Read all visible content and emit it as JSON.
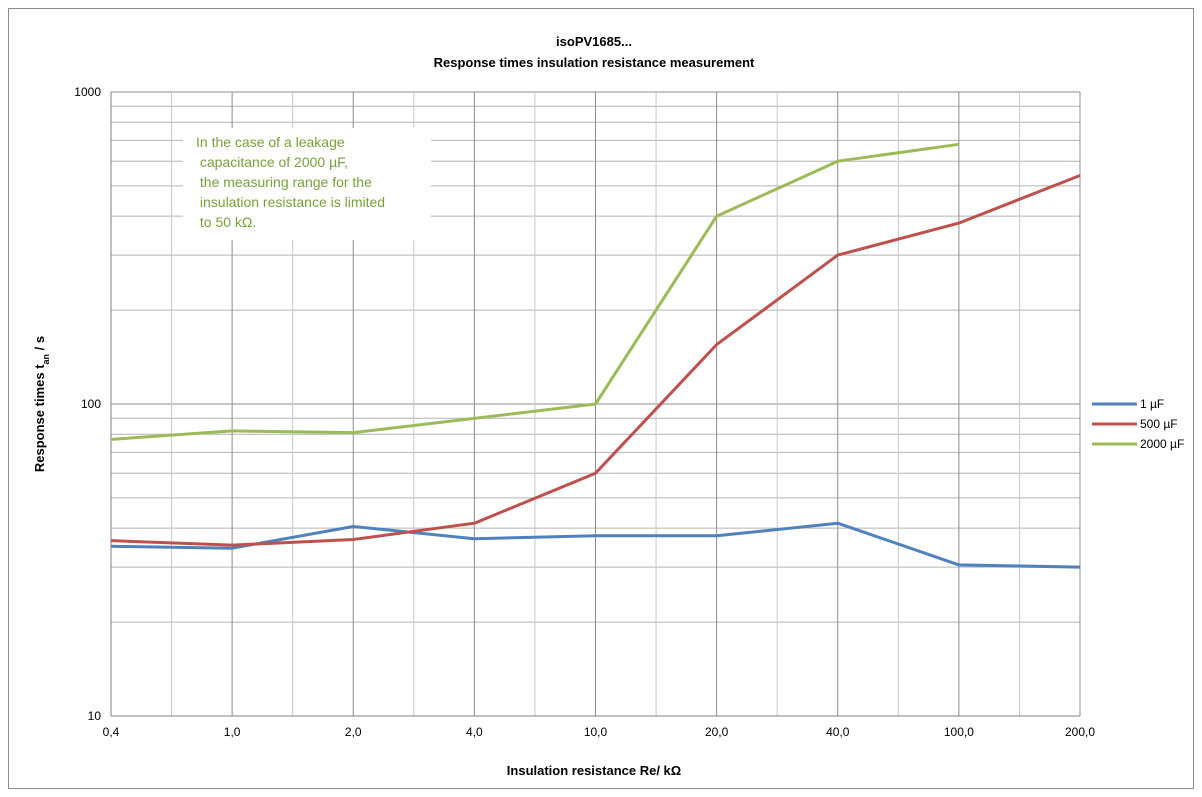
{
  "chart_data": {
    "type": "line",
    "title": "isoPV1685...",
    "subtitle": "Response times insulation resistance measurement",
    "xlabel": "Insulation resistance Re/ kΩ",
    "ylabel_main": "Response times t",
    "ylabel_sub": "an",
    "ylabel_suffix": " / s",
    "y_scale": "log",
    "ylim": [
      10,
      1000
    ],
    "y_ticks": [
      "10",
      "100",
      "1000"
    ],
    "categories": [
      "0,4",
      "1,0",
      "2,0",
      "4,0",
      "10,0",
      "20,0",
      "40,0",
      "100,0",
      "200,0"
    ],
    "series": [
      {
        "name": "1 µF",
        "color": "#4f81bd",
        "values": [
          35,
          34.5,
          40.5,
          37,
          37.8,
          37.8,
          41.5,
          30.5,
          30
        ]
      },
      {
        "name": "500 µF",
        "color": "#c0504d",
        "values": [
          36.5,
          35.3,
          36.8,
          41.5,
          60,
          155,
          300,
          380,
          540
        ]
      },
      {
        "name": "2000 µF",
        "color": "#9bbb59",
        "values": [
          77,
          82,
          81,
          null,
          100,
          400,
          600,
          680,
          null
        ]
      }
    ],
    "annotation": [
      "In the case of a leakage",
      " capacitance of 2000 µF,",
      " the measuring range for the",
      " insulation resistance is limited",
      " to 50 kΩ."
    ],
    "grid": true,
    "legend_position": "right"
  }
}
